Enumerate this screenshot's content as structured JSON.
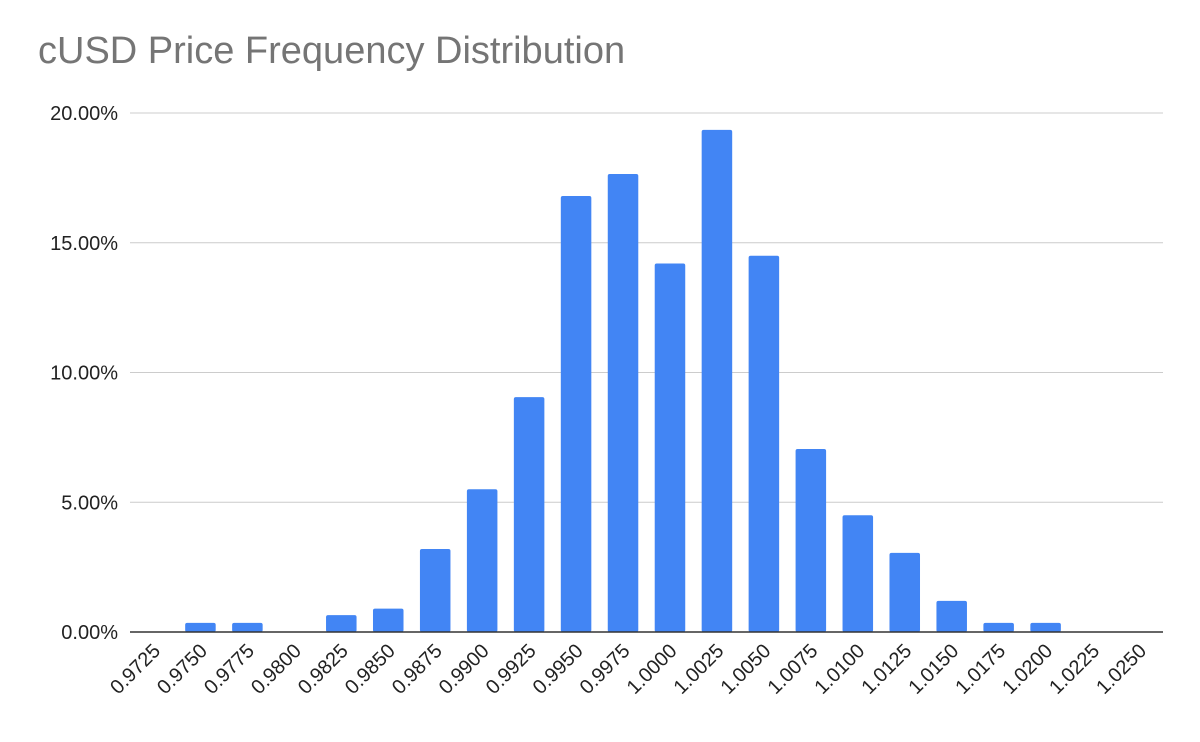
{
  "chart_data": {
    "type": "bar",
    "title": "cUSD Price Frequency Distribution",
    "xlabel": "",
    "ylabel": "",
    "categories": [
      "0.9725",
      "0.9750",
      "0.9775",
      "0.9800",
      "0.9825",
      "0.9850",
      "0.9875",
      "0.9900",
      "0.9925",
      "0.9950",
      "0.9975",
      "1.0000",
      "1.0025",
      "1.0050",
      "1.0075",
      "1.0100",
      "1.0125",
      "1.0150",
      "1.0175",
      "1.0200",
      "1.0225",
      "1.0250"
    ],
    "values": [
      0,
      0.35,
      0.35,
      0,
      0.65,
      0.9,
      3.2,
      5.5,
      9.05,
      16.8,
      17.65,
      14.2,
      19.35,
      14.5,
      7.05,
      4.5,
      3.05,
      1.2,
      0.35,
      0.35,
      0,
      0
    ],
    "ylim": [
      0,
      20
    ],
    "yticks": [
      "0.00%",
      "5.00%",
      "10.00%",
      "15.00%",
      "20.00%"
    ],
    "ytick_values": [
      0,
      5,
      10,
      15,
      20
    ],
    "bar_color": "#4285f4",
    "grid": true
  }
}
